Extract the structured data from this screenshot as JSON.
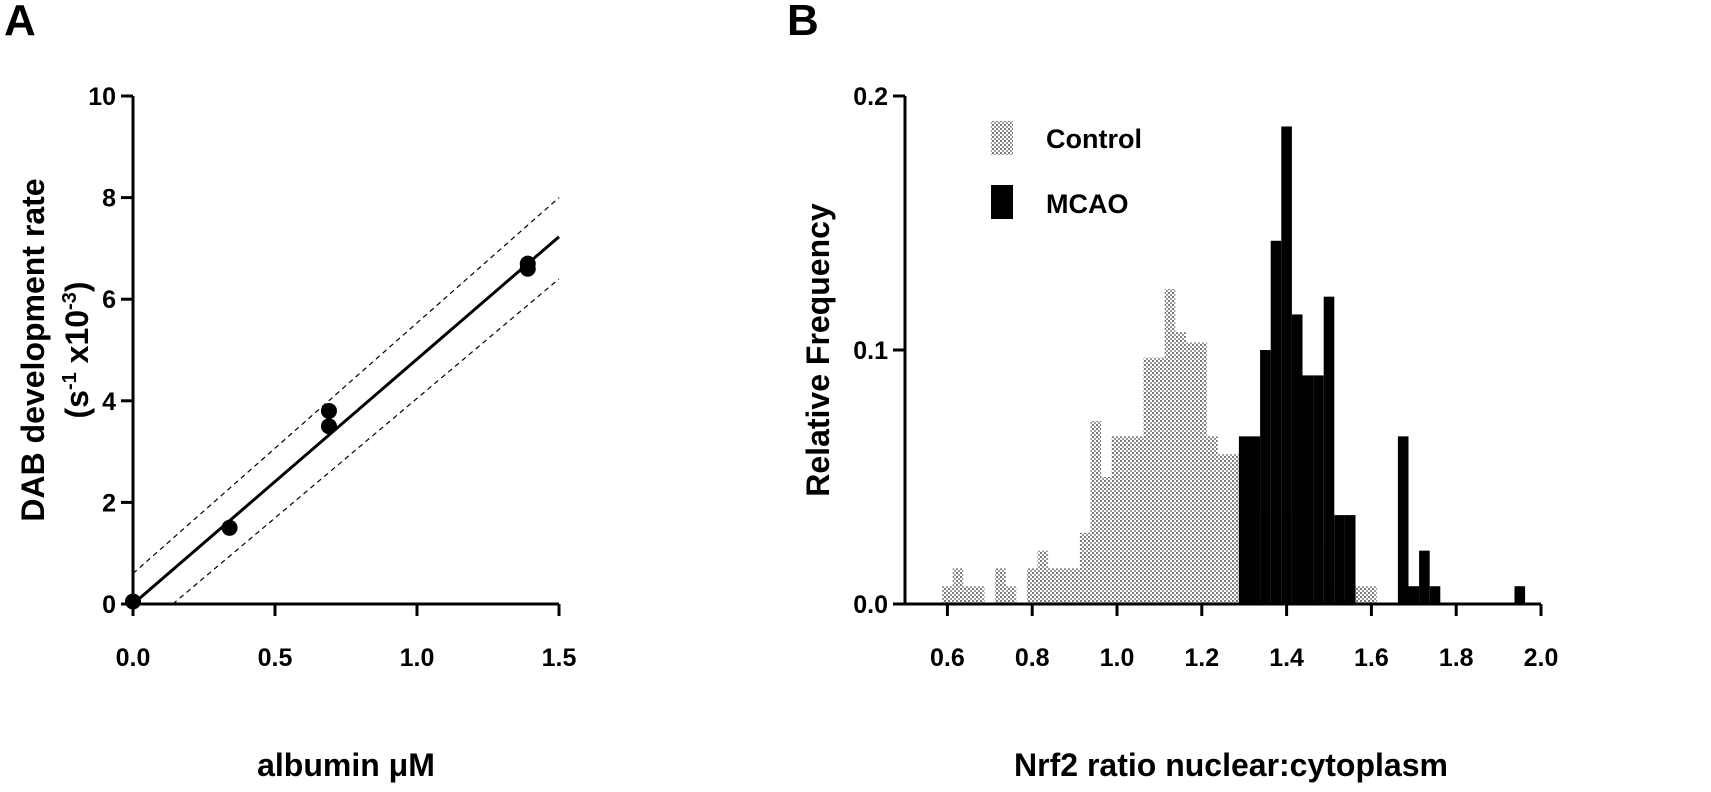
{
  "panels": {
    "a_label": "A",
    "b_label": "B"
  },
  "colors": {
    "axis": "#000000",
    "control": "#c8c8c8",
    "mcao": "#000000",
    "point": "#000000"
  },
  "chart_data": [
    {
      "type": "scatter",
      "panel": "A",
      "xlabel": "albumin μM",
      "ylabel_line1": "DAB development rate",
      "ylabel_line2_base": "(s",
      "ylabel_line2_sup1": "-1",
      "ylabel_line2_mid": " x10",
      "ylabel_line2_sup2": "-3",
      "ylabel_line2_end": ")",
      "xlim": [
        0,
        1.5
      ],
      "ylim": [
        0,
        10
      ],
      "xticks": [
        "0.0",
        "0.5",
        "1.0",
        "1.5"
      ],
      "xtick_values": [
        0,
        0.5,
        1.0,
        1.5
      ],
      "yticks": [
        "0",
        "2",
        "4",
        "6",
        "8",
        "10"
      ],
      "ytick_values": [
        0,
        2,
        4,
        6,
        8,
        10
      ],
      "points": [
        {
          "x": 0.0,
          "y": 0.05
        },
        {
          "x": 0.34,
          "y": 1.5
        },
        {
          "x": 0.69,
          "y": 3.8
        },
        {
          "x": 0.69,
          "y": 3.5
        },
        {
          "x": 1.39,
          "y": 6.7
        },
        {
          "x": 1.39,
          "y": 6.6
        }
      ],
      "fit_line": {
        "slope": 4.82,
        "intercept": 0.0
      },
      "confidence_band": {
        "upper": [
          {
            "x": 0.0,
            "y": 0.6
          },
          {
            "x": 1.5,
            "y": 8.0
          }
        ],
        "lower": [
          {
            "x": 0.14,
            "y": 0.0
          },
          {
            "x": 1.5,
            "y": 6.4
          }
        ]
      }
    },
    {
      "type": "bar",
      "panel": "B",
      "xlabel": "Nrf2 ratio  nuclear:cytoplasm",
      "ylabel": "Relative Frequency",
      "xlim": [
        0.5,
        2.0
      ],
      "ylim": [
        0,
        0.2
      ],
      "xticks": [
        "0.6",
        "0.8",
        "1.0",
        "1.2",
        "1.4",
        "1.6",
        "1.8",
        "2.0"
      ],
      "xtick_values": [
        0.6,
        0.8,
        1.0,
        1.2,
        1.4,
        1.6,
        1.8,
        2.0
      ],
      "yticks": [
        "0.0",
        "0.1",
        "0.2"
      ],
      "ytick_values": [
        0.0,
        0.1,
        0.2
      ],
      "bin_width": 0.025,
      "legend_position": "top-left",
      "series": [
        {
          "name": "Control",
          "bins": [
            {
              "x": 0.6,
              "y": 0.007
            },
            {
              "x": 0.625,
              "y": 0.014
            },
            {
              "x": 0.65,
              "y": 0.007
            },
            {
              "x": 0.675,
              "y": 0.007
            },
            {
              "x": 0.725,
              "y": 0.014
            },
            {
              "x": 0.75,
              "y": 0.007
            },
            {
              "x": 0.8,
              "y": 0.014
            },
            {
              "x": 0.825,
              "y": 0.021
            },
            {
              "x": 0.85,
              "y": 0.014
            },
            {
              "x": 0.875,
              "y": 0.014
            },
            {
              "x": 0.9,
              "y": 0.014
            },
            {
              "x": 0.925,
              "y": 0.028
            },
            {
              "x": 0.95,
              "y": 0.072
            },
            {
              "x": 0.975,
              "y": 0.05
            },
            {
              "x": 1.0,
              "y": 0.066
            },
            {
              "x": 1.025,
              "y": 0.066
            },
            {
              "x": 1.05,
              "y": 0.066
            },
            {
              "x": 1.075,
              "y": 0.097
            },
            {
              "x": 1.1,
              "y": 0.097
            },
            {
              "x": 1.125,
              "y": 0.124
            },
            {
              "x": 1.15,
              "y": 0.107
            },
            {
              "x": 1.175,
              "y": 0.103
            },
            {
              "x": 1.2,
              "y": 0.103
            },
            {
              "x": 1.225,
              "y": 0.066
            },
            {
              "x": 1.25,
              "y": 0.059
            },
            {
              "x": 1.275,
              "y": 0.059
            },
            {
              "x": 1.3,
              "y": 0.04
            },
            {
              "x": 1.325,
              "y": 0.035
            },
            {
              "x": 1.35,
              "y": 0.035
            },
            {
              "x": 1.375,
              "y": 0.035
            },
            {
              "x": 1.4,
              "y": 0.035
            },
            {
              "x": 1.425,
              "y": 0.014
            },
            {
              "x": 1.45,
              "y": 0.014
            },
            {
              "x": 1.475,
              "y": 0.021
            },
            {
              "x": 1.5,
              "y": 0.007
            },
            {
              "x": 1.525,
              "y": 0.007
            },
            {
              "x": 1.55,
              "y": 0.007
            },
            {
              "x": 1.575,
              "y": 0.007
            },
            {
              "x": 1.6,
              "y": 0.007
            }
          ]
        },
        {
          "name": "MCAO",
          "bins": [
            {
              "x": 1.3,
              "y": 0.066
            },
            {
              "x": 1.325,
              "y": 0.066
            },
            {
              "x": 1.35,
              "y": 0.1
            },
            {
              "x": 1.375,
              "y": 0.143
            },
            {
              "x": 1.4,
              "y": 0.188
            },
            {
              "x": 1.425,
              "y": 0.114
            },
            {
              "x": 1.45,
              "y": 0.09
            },
            {
              "x": 1.475,
              "y": 0.09
            },
            {
              "x": 1.5,
              "y": 0.121
            },
            {
              "x": 1.525,
              "y": 0.035
            },
            {
              "x": 1.55,
              "y": 0.035
            },
            {
              "x": 1.675,
              "y": 0.066
            },
            {
              "x": 1.7,
              "y": 0.007
            },
            {
              "x": 1.725,
              "y": 0.021
            },
            {
              "x": 1.75,
              "y": 0.007
            },
            {
              "x": 1.95,
              "y": 0.007
            }
          ]
        }
      ]
    }
  ]
}
